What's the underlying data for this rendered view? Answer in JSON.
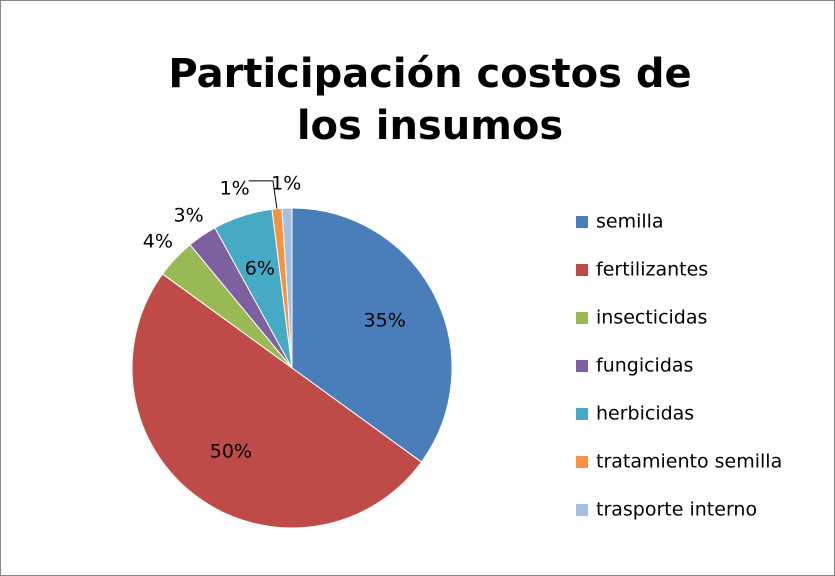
{
  "chart_data": {
    "type": "pie",
    "title": "Participación costos de los insumos",
    "categories": [
      "semilla",
      "fertilizantes",
      "insecticidas",
      "fungicidas",
      "herbicidas",
      "tratamiento semilla",
      "trasporte interno"
    ],
    "values": [
      35,
      50,
      4,
      3,
      6,
      1,
      1
    ],
    "value_labels": [
      "35%",
      "50%",
      "4%",
      "3%",
      "6%",
      "1%",
      "1%"
    ],
    "colors": [
      "#4a7ebb",
      "#be4b48",
      "#98b954",
      "#7d60a0",
      "#46aac5",
      "#f69240",
      "#a7bfde"
    ],
    "legend": "right"
  }
}
